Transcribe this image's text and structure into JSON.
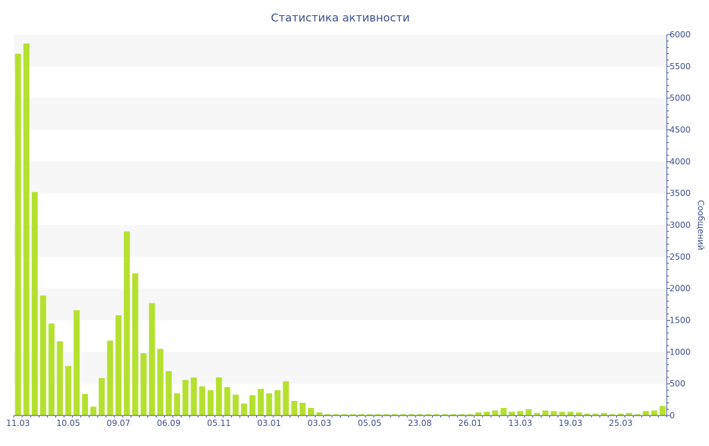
{
  "chart_data": {
    "type": "bar",
    "title": "Статистика активности",
    "ylabel": "Сообщений",
    "xlabel": "",
    "ylim": [
      0,
      6000
    ],
    "y_ticks": [
      0,
      500,
      1000,
      1500,
      2000,
      2500,
      3000,
      3500,
      4000,
      4500,
      5000,
      5500,
      6000
    ],
    "y_axis_side": "right",
    "grid": "alternating horizontal bands",
    "bar_color": "#b5e030",
    "band_color": "#f7f7f7",
    "text_color": "#3d4f8f",
    "x_tick_labels": [
      {
        "index": 0,
        "label": "11.03"
      },
      {
        "index": 6,
        "label": "10.05"
      },
      {
        "index": 12,
        "label": "09.07"
      },
      {
        "index": 18,
        "label": "06.09"
      },
      {
        "index": 24,
        "label": "05.11"
      },
      {
        "index": 30,
        "label": "03.01"
      },
      {
        "index": 36,
        "label": "03.03"
      },
      {
        "index": 42,
        "label": "05.05"
      },
      {
        "index": 48,
        "label": "23.08"
      },
      {
        "index": 54,
        "label": "26.01"
      },
      {
        "index": 60,
        "label": "13.03"
      },
      {
        "index": 66,
        "label": "19.03"
      },
      {
        "index": 72,
        "label": "25.03"
      }
    ],
    "values": [
      5700,
      5860,
      3520,
      1890,
      1450,
      1170,
      780,
      1660,
      340,
      140,
      590,
      1180,
      1580,
      2900,
      2240,
      980,
      1770,
      1050,
      700,
      350,
      560,
      600,
      460,
      400,
      600,
      450,
      330,
      190,
      320,
      420,
      350,
      400,
      540,
      230,
      200,
      120,
      50,
      20,
      20,
      20,
      20,
      20,
      20,
      20,
      20,
      20,
      20,
      20,
      20,
      20,
      20,
      20,
      20,
      20,
      20,
      50,
      60,
      80,
      120,
      60,
      70,
      100,
      40,
      80,
      70,
      60,
      60,
      50,
      30,
      30,
      40,
      20,
      30,
      40,
      20,
      70,
      80,
      150
    ]
  }
}
